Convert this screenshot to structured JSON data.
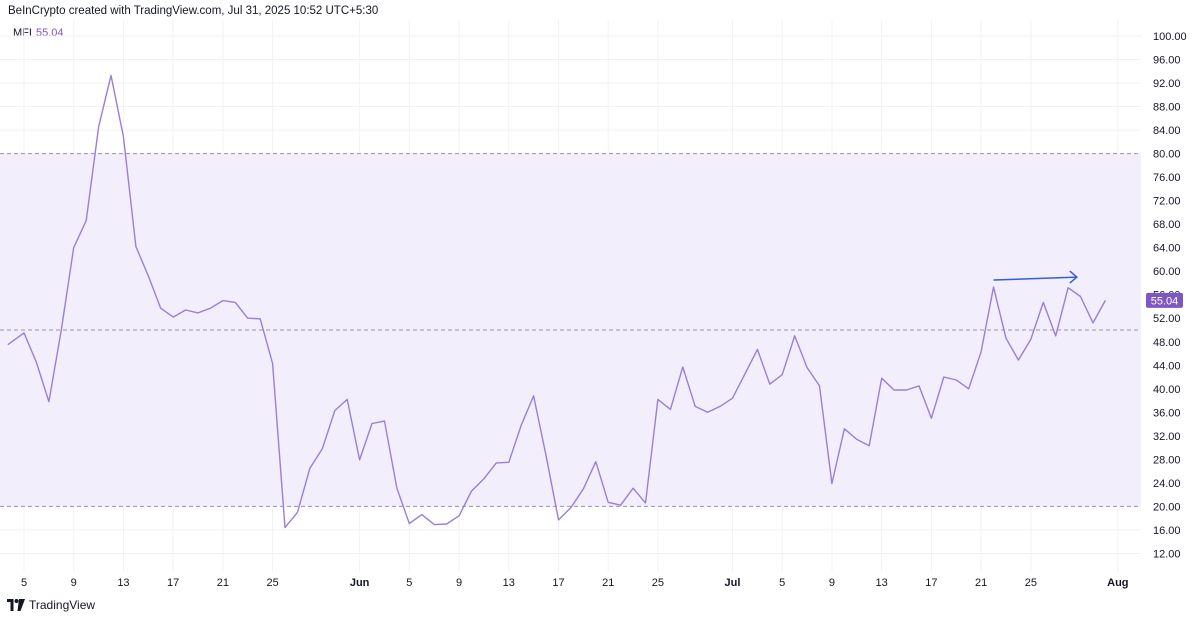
{
  "header": {
    "caption": "BeInCrypto created with TradingView.com, Jul 31, 2025 10:52 UTC+5:30"
  },
  "legend": {
    "name": "MFI",
    "value": "55.04"
  },
  "footer": {
    "brand": "TradingView",
    "logo_icon": "tradingview-logo-icon"
  },
  "colors": {
    "line": "#9b7fd4",
    "band_fill": "#f2eefb",
    "level_line": "#9e93ad",
    "price_tag": "#7e57c2",
    "arrow": "#3b5bdb",
    "grid": "#f0f2f5"
  },
  "chart_data": {
    "type": "line",
    "series_name": "MFI",
    "ylim": [
      10,
      102
    ],
    "yticks": [
      "100.00",
      "96.00",
      "92.00",
      "88.00",
      "84.00",
      "80.00",
      "76.00",
      "72.00",
      "68.00",
      "64.00",
      "60.00",
      "56.00",
      "52.00",
      "48.00",
      "44.00",
      "40.00",
      "36.00",
      "32.00",
      "28.00",
      "24.00",
      "20.00",
      "16.00",
      "12.00"
    ],
    "ytick_values": [
      100,
      96,
      92,
      88,
      84,
      80,
      76,
      72,
      68,
      64,
      60,
      56,
      52,
      48,
      44,
      40,
      36,
      32,
      28,
      24,
      20,
      16,
      12
    ],
    "xticks": [
      {
        "label": "5",
        "day": 0,
        "bold": false
      },
      {
        "label": "9",
        "day": 4,
        "bold": false
      },
      {
        "label": "13",
        "day": 8,
        "bold": false
      },
      {
        "label": "17",
        "day": 12,
        "bold": false
      },
      {
        "label": "21",
        "day": 16,
        "bold": false
      },
      {
        "label": "25",
        "day": 20,
        "bold": false
      },
      {
        "label": "Jun",
        "day": 27,
        "bold": true
      },
      {
        "label": "5",
        "day": 31,
        "bold": false
      },
      {
        "label": "9",
        "day": 35,
        "bold": false
      },
      {
        "label": "13",
        "day": 39,
        "bold": false
      },
      {
        "label": "17",
        "day": 43,
        "bold": false
      },
      {
        "label": "21",
        "day": 47,
        "bold": false
      },
      {
        "label": "25",
        "day": 51,
        "bold": false
      },
      {
        "label": "Jul",
        "day": 57,
        "bold": true
      },
      {
        "label": "5",
        "day": 61,
        "bold": false
      },
      {
        "label": "9",
        "day": 65,
        "bold": false
      },
      {
        "label": "13",
        "day": 69,
        "bold": false
      },
      {
        "label": "17",
        "day": 73,
        "bold": false
      },
      {
        "label": "21",
        "day": 77,
        "bold": false
      },
      {
        "label": "25",
        "day": 81,
        "bold": false
      },
      {
        "label": "Aug",
        "day": 88,
        "bold": true
      }
    ],
    "x_days": [
      -1.3,
      0,
      1,
      2,
      3,
      4,
      5,
      6,
      7,
      8,
      9,
      10,
      11,
      12,
      13,
      14,
      15,
      16,
      17,
      18,
      19,
      20,
      21,
      22,
      23,
      24,
      25,
      26,
      27,
      28,
      29,
      30,
      31,
      32,
      33,
      34,
      35,
      36,
      37,
      38,
      39,
      40,
      41,
      42,
      43,
      44,
      45,
      46,
      47,
      48,
      49,
      50,
      51,
      52,
      53,
      54,
      55,
      56,
      57,
      58,
      59,
      60,
      61,
      62,
      63,
      64,
      65,
      66,
      67,
      68,
      69,
      70,
      71,
      72,
      73,
      74,
      75,
      76,
      77,
      78,
      79,
      80,
      81,
      82,
      83,
      84,
      85,
      86,
      87
    ],
    "values": [
      47.5,
      49.5,
      44.5,
      37.8,
      50.0,
      64.0,
      68.6,
      84.5,
      93.3,
      82.9,
      64.2,
      59.2,
      53.7,
      52.2,
      53.4,
      52.9,
      53.7,
      55.0,
      54.7,
      52.0,
      51.9,
      44.3,
      16.4,
      19.0,
      26.5,
      29.8,
      36.3,
      38.2,
      27.9,
      34.1,
      34.5,
      23.1,
      17.1,
      18.6,
      16.9,
      17.0,
      18.4,
      22.6,
      24.7,
      27.4,
      27.5,
      33.8,
      38.8,
      28.6,
      17.7,
      19.8,
      23.0,
      27.6,
      20.7,
      20.2,
      23.1,
      20.6,
      38.2,
      36.5,
      43.7,
      37.0,
      36.0,
      37.0,
      38.4,
      42.5,
      46.7,
      40.8,
      42.4,
      49.0,
      43.6,
      40.5,
      23.9,
      33.2,
      31.4,
      30.3,
      41.8,
      39.8,
      39.8,
      40.5,
      35.0,
      42.0,
      41.5,
      40.0,
      46.3,
      57.3,
      48.6,
      44.9,
      48.4,
      54.7,
      49.0,
      57.2,
      55.7,
      51.2,
      55.04
    ],
    "overbought": 80,
    "middle": 50,
    "oversold": 20,
    "last_value_label": "55.04",
    "arrow_annotation": {
      "from": {
        "day": 78,
        "value": 58.5
      },
      "to": {
        "day": 84.7,
        "value": 59.0
      }
    }
  }
}
